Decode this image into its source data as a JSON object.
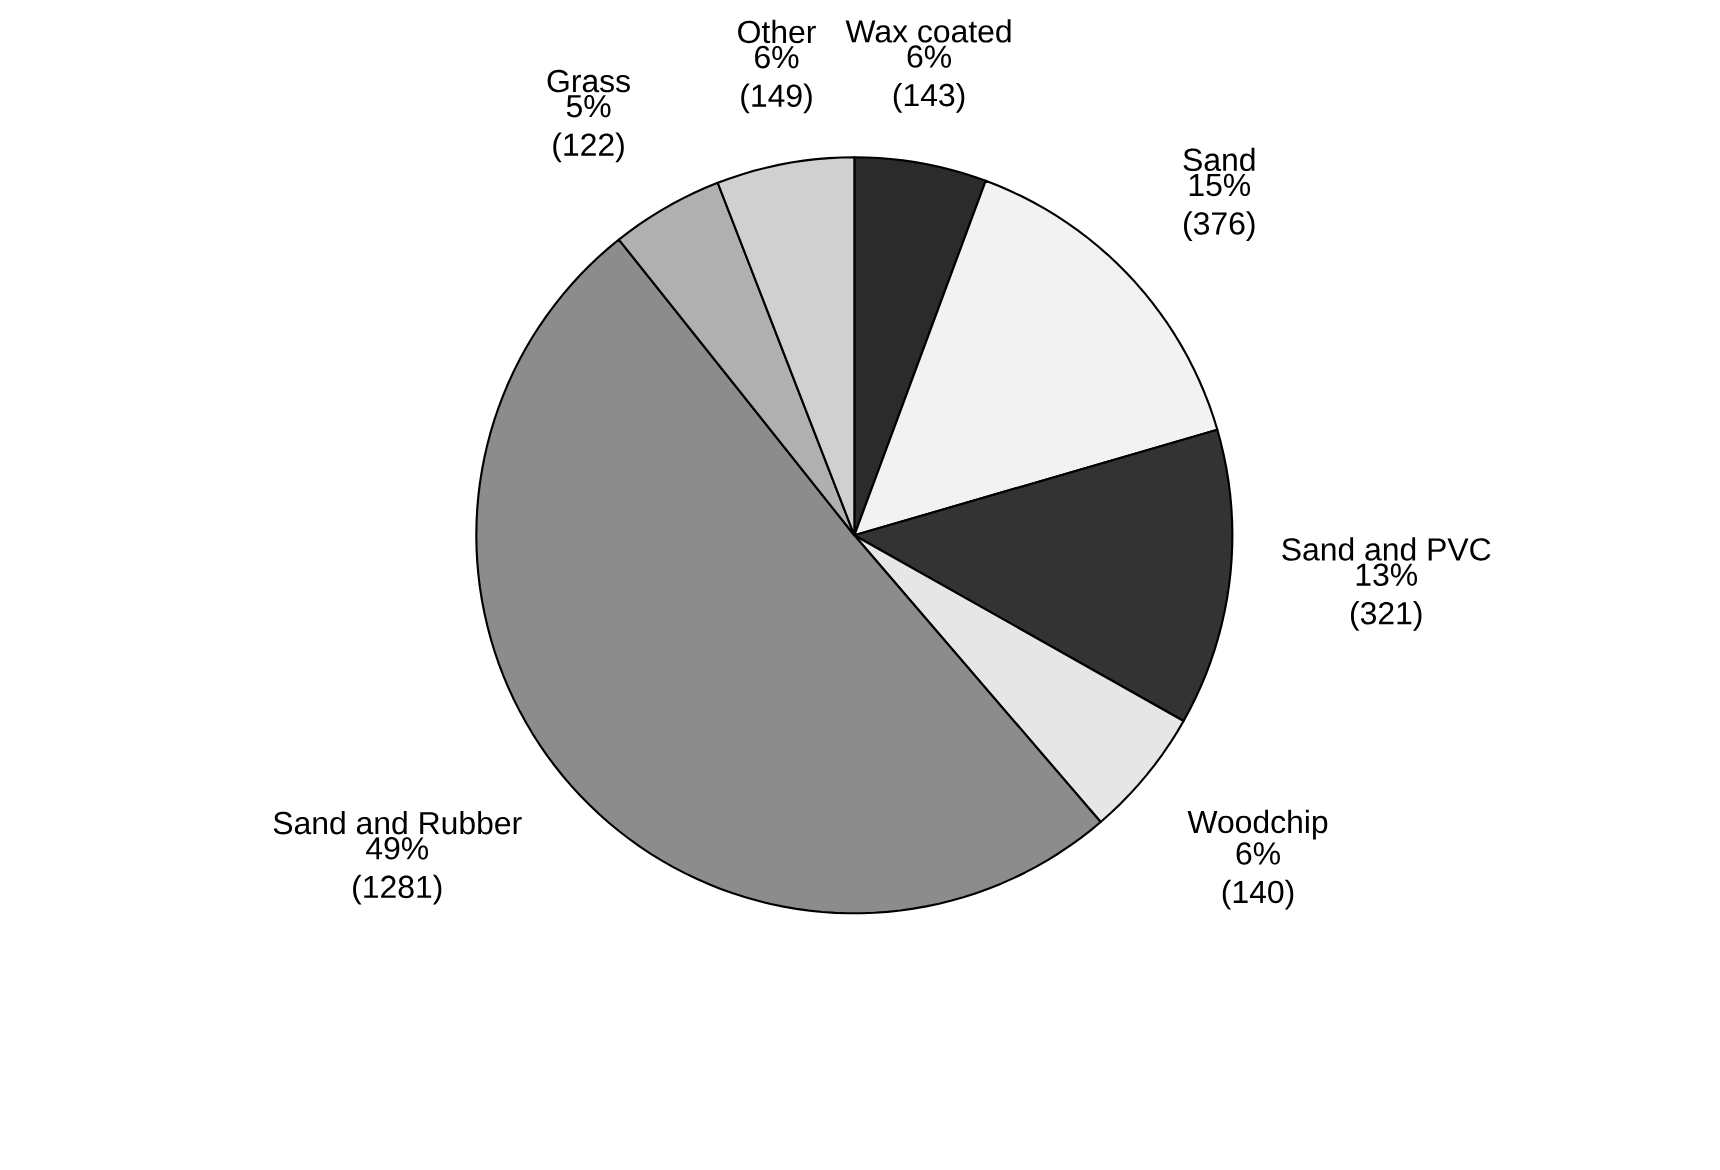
{
  "chart_data": {
    "type": "pie",
    "categories": [
      "Wax coated",
      "Sand",
      "Sand and PVC",
      "Woodchip",
      "Sand and Rubber",
      "Grass",
      "Other"
    ],
    "values": [
      143,
      376,
      321,
      140,
      1281,
      122,
      149
    ],
    "value_labels": [
      "6% (143)",
      "15% (376)",
      "13% (321)",
      "6% (140)",
      "49% (1281)",
      "5% (122)",
      "6% (149)"
    ],
    "colors": [
      "#2b2b2b",
      "#f2f2f2",
      "#333333",
      "#e6e6e6",
      "#8c8c8c",
      "#b0b0b0",
      "#d0d0d0"
    ]
  }
}
